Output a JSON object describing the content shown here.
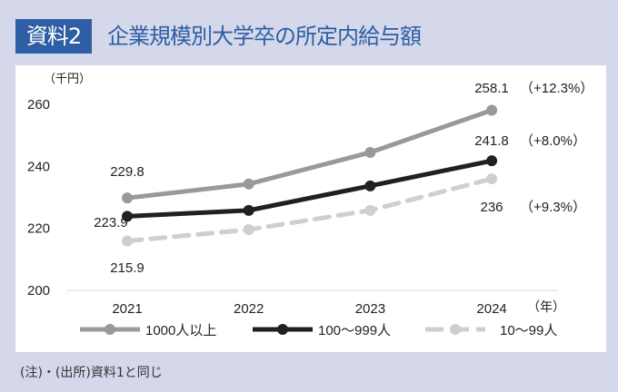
{
  "header": {
    "badge": "資料2",
    "title": "企業規模別大学卒の所定内給与額"
  },
  "footer": {
    "note": "(注)・(出所)資料1と同じ"
  },
  "chart_data": {
    "type": "line",
    "title": "企業規模別大学卒の所定内給与額",
    "ylabel": "（千円）",
    "xlabel": "（年）",
    "x": [
      "2021",
      "2022",
      "2023",
      "2024"
    ],
    "ylim": [
      200,
      260
    ],
    "yticks": [
      "200",
      "220",
      "240",
      "260"
    ],
    "grid": false,
    "legend": "bottom",
    "series": [
      {
        "name": "1000人以上",
        "values": [
          229.8,
          234.3,
          244.5,
          258.1
        ],
        "color": "#999999",
        "dash": false,
        "labels": {
          "first": "229.8",
          "last": "258.1",
          "change": "（+12.3%）"
        }
      },
      {
        "name": "100～999人",
        "values": [
          223.9,
          225.8,
          233.7,
          241.8
        ],
        "color": "#231f20",
        "dash": false,
        "labels": {
          "first": "223.9",
          "last": "241.8",
          "change": "（+8.0%）"
        }
      },
      {
        "name": "10～99人",
        "values": [
          215.9,
          219.6,
          225.8,
          236
        ],
        "color": "#cfcfcf",
        "dash": true,
        "labels": {
          "first": "215.9",
          "last": "236",
          "change": "（+9.3%）"
        }
      }
    ]
  }
}
